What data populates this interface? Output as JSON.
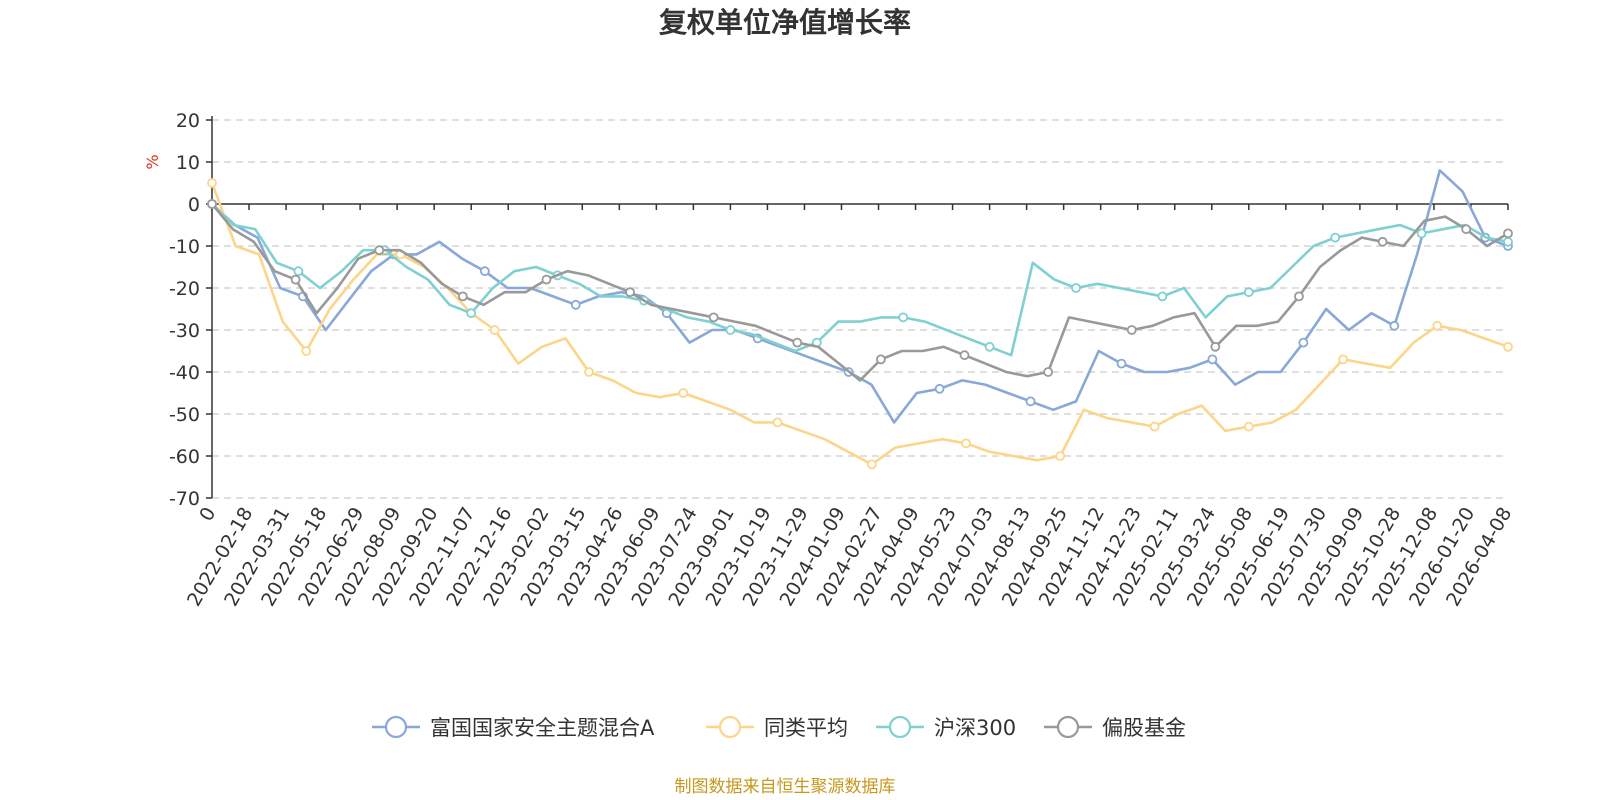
{
  "chart_data": {
    "type": "line",
    "title": "复权单位净值增长率",
    "ylabel": "%",
    "ylim": [
      -70,
      20
    ],
    "yticks": [
      20,
      10,
      0,
      -10,
      -20,
      -30,
      -40,
      -50,
      -60,
      -70
    ],
    "grid": true,
    "legend_position": "bottom",
    "x_tick_labels": [
      "0",
      "2022-02-18",
      "2022-03-31",
      "2022-05-18",
      "2022-06-29",
      "2022-08-09",
      "2022-09-20",
      "2022-11-07",
      "2022-12-16",
      "2023-02-02",
      "2023-03-15",
      "2023-04-26",
      "2023-06-09",
      "2023-07-24",
      "2023-09-01",
      "2023-10-19",
      "2023-11-29",
      "2024-01-09",
      "2024-02-27",
      "2024-04-09",
      "2024-05-23",
      "2024-07-03",
      "2024-08-13",
      "2024-09-25",
      "2024-11-12",
      "2024-12-23",
      "2025-02-11",
      "2025-03-24",
      "2025-05-08",
      "2025-06-19",
      "2025-07-30",
      "2025-09-09",
      "2025-10-28",
      "2025-12-08",
      "2026-01-20",
      "2026-04-08"
    ],
    "series": [
      {
        "name": "富国国家安全主题混合A",
        "color": "#88a8d8",
        "values": [
          0,
          -5,
          -8,
          -20,
          -22,
          -30,
          -23,
          -16,
          -12,
          -12,
          -9,
          -13,
          -16,
          -20,
          -20,
          -22,
          -24,
          -22,
          -21,
          -22,
          -26,
          -33,
          -30,
          -30,
          -32,
          -34,
          -36,
          -38,
          -40,
          -43,
          -52,
          -45,
          -44,
          -42,
          -43,
          -45,
          -47,
          -49,
          -47,
          -35,
          -38,
          -40,
          -40,
          -39,
          -37,
          -43,
          -40,
          -40,
          -33,
          -25,
          -30,
          -26,
          -29,
          -12,
          8,
          3,
          -8,
          -10
        ]
      },
      {
        "name": "同类平均",
        "color": "#fcd58a",
        "values": [
          5,
          -10,
          -12,
          -28,
          -35,
          -25,
          -18,
          -12,
          -12,
          -15,
          -20,
          -26,
          -30,
          -38,
          -34,
          -32,
          -40,
          -42,
          -45,
          -46,
          -45,
          -47,
          -49,
          -52,
          -52,
          -54,
          -56,
          -59,
          -62,
          -58,
          -57,
          -56,
          -57,
          -59,
          -60,
          -61,
          -60,
          -49,
          -51,
          -52,
          -53,
          -50,
          -48,
          -54,
          -53,
          -52,
          -49,
          -43,
          -37,
          -38,
          -39,
          -33,
          -29,
          -30,
          -32,
          -34
        ]
      },
      {
        "name": "沪深300",
        "color": "#7fd0d0",
        "values": [
          0,
          -5,
          -6,
          -14,
          -16,
          -20,
          -16,
          -11,
          -11,
          -15,
          -18,
          -24,
          -26,
          -20,
          -16,
          -15,
          -17,
          -19,
          -22,
          -22,
          -23,
          -25,
          -27,
          -28,
          -30,
          -31,
          -33,
          -35,
          -33,
          -28,
          -28,
          -27,
          -27,
          -28,
          -30,
          -32,
          -34,
          -36,
          -14,
          -18,
          -20,
          -19,
          -20,
          -21,
          -22,
          -20,
          -27,
          -22,
          -21,
          -20,
          -15,
          -10,
          -8,
          -7,
          -6,
          -5,
          -7,
          -6,
          -5,
          -8,
          -9
        ]
      },
      {
        "name": "偏股基金",
        "color": "#999999",
        "values": [
          0,
          -6,
          -9,
          -16,
          -18,
          -26,
          -20,
          -13,
          -11,
          -11,
          -14,
          -19,
          -22,
          -24,
          -21,
          -21,
          -18,
          -16,
          -17,
          -19,
          -21,
          -24,
          -25,
          -26,
          -27,
          -28,
          -29,
          -31,
          -33,
          -34,
          -38,
          -42,
          -37,
          -35,
          -35,
          -34,
          -36,
          -38,
          -40,
          -41,
          -40,
          -27,
          -28,
          -29,
          -30,
          -29,
          -27,
          -26,
          -34,
          -29,
          -29,
          -28,
          -22,
          -15,
          -11,
          -8,
          -9,
          -10,
          -4,
          -3,
          -6,
          -10,
          -7
        ]
      }
    ]
  },
  "source_note": "制图数据来自恒生聚源数据库"
}
